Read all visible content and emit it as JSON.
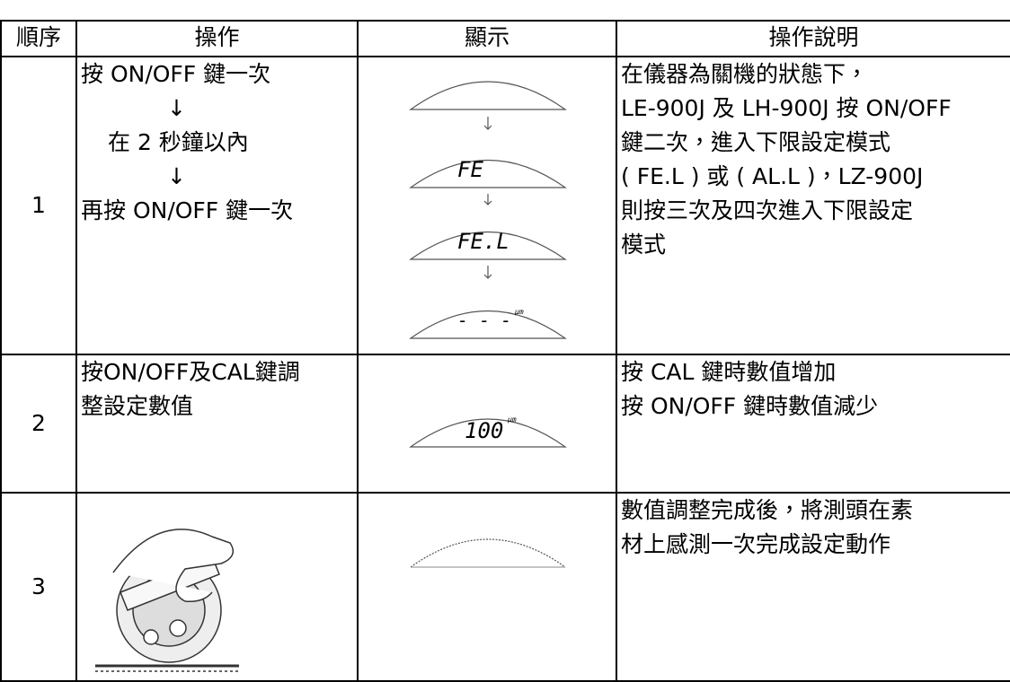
{
  "table": {
    "headers": [
      "順序",
      "操作",
      "顯示",
      "操作說明"
    ],
    "rows": [
      {
        "step": "1",
        "operation": [
          "按 ON/OFF 鍵一次",
          "↓",
          "在 2 秒鐘以內",
          "↓",
          "再按 ON/OFF 鍵一次"
        ],
        "display": [
          "FE",
          "FE.L",
          "- - -"
        ],
        "unit": "µm",
        "description": [
          "在儀器為關機的狀態下，",
          "LE-900J 及 LH-900J 按 ON/OFF",
          "鍵二次，進入下限設定模式",
          "( FE.L ) 或 (  AL.L  )，LZ-900J",
          "則按三次及四次進入下限設定",
          "模式"
        ]
      },
      {
        "step": "2",
        "operation": [
          "按ON/OFF及CAL鍵調",
          "整設定數值"
        ],
        "display": [
          "100"
        ],
        "unit": "µm",
        "description": [
          "按 CAL 鍵時數值增加",
          "按 ON/OFF 鍵時數值減少"
        ]
      },
      {
        "step": "3",
        "description": [
          "數值調整完成後，將測頭在素",
          "材上感測一次完成設定動作"
        ]
      }
    ]
  }
}
